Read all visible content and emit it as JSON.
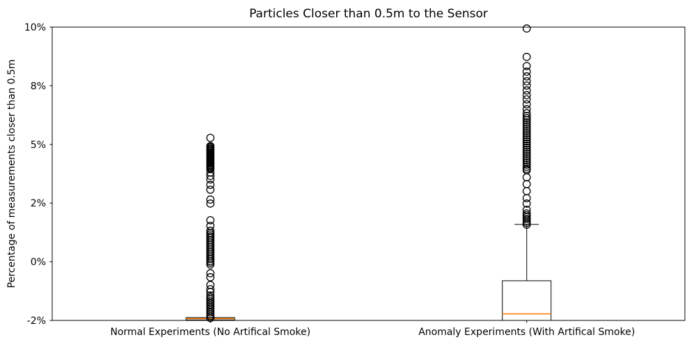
{
  "chart_data": {
    "type": "boxplot",
    "title": "Particles Closer than 0.5m to the Sensor",
    "ylabel": "Percentage of measurements closer than 0.5m",
    "xlabel": "",
    "ylim": [
      -2.5,
      10
    ],
    "y_unit": "percent",
    "grid": false,
    "legend": "none",
    "yticks": [
      {
        "value": -2.5,
        "label": "-2%"
      },
      {
        "value": 0,
        "label": "0%"
      },
      {
        "value": 2.5,
        "label": "2%"
      },
      {
        "value": 5,
        "label": "5%"
      },
      {
        "value": 7.5,
        "label": "8%"
      },
      {
        "value": 10,
        "label": "10%"
      }
    ],
    "categories": [
      "Normal Experiments (No Artifical Smoke)",
      "Anomaly Experiments (With Artifical Smoke)"
    ],
    "colors": {
      "box_edge": "#000000",
      "median": "#ff7f0e",
      "flier_edge": "#000000"
    },
    "series": [
      {
        "name": "Normal Experiments (No Artifical Smoke)",
        "whisker_low": -2.5,
        "q1": -2.48,
        "median": -2.42,
        "q3": -2.38,
        "whisker_high": -2.38,
        "outliers": [
          5.28,
          4.93,
          4.89,
          4.84,
          4.8,
          4.75,
          4.71,
          4.66,
          4.62,
          4.57,
          4.53,
          4.48,
          4.44,
          4.39,
          4.35,
          4.3,
          4.26,
          4.21,
          4.17,
          4.12,
          4.08,
          4.03,
          3.99,
          3.95,
          3.8,
          3.66,
          3.51,
          3.28,
          3.07,
          2.65,
          2.48,
          1.77,
          1.53,
          1.32,
          1.23,
          1.16,
          1.08,
          1.01,
          0.93,
          0.86,
          0.78,
          0.71,
          0.63,
          0.56,
          0.48,
          0.41,
          0.33,
          0.26,
          0.18,
          0.11,
          0.03,
          -0.04,
          -0.12,
          -0.49,
          -0.66,
          -0.99,
          -1.17,
          -1.29,
          -1.44,
          -1.52,
          -1.6,
          -1.68,
          -1.76,
          -1.84,
          -1.92,
          -2.0,
          -2.08,
          -2.16,
          -2.24,
          -2.32,
          -2.4
        ]
      },
      {
        "name": "Anomaly Experiments (With Artifical Smoke)",
        "whisker_low": -2.5,
        "q1": -2.5,
        "median": -2.22,
        "q3": -0.81,
        "whisker_high": 1.59,
        "outliers": [
          9.94,
          8.73,
          8.34,
          8.1,
          7.9,
          7.69,
          7.51,
          7.3,
          7.1,
          6.92,
          6.71,
          6.5,
          6.33,
          6.21,
          6.12,
          6.03,
          5.94,
          5.85,
          5.76,
          5.67,
          5.58,
          5.49,
          5.4,
          5.31,
          5.22,
          5.13,
          5.04,
          4.95,
          4.86,
          4.77,
          4.68,
          4.59,
          4.5,
          4.41,
          4.32,
          4.23,
          4.14,
          4.05,
          3.96,
          3.9,
          3.6,
          3.31,
          3.01,
          2.71,
          2.48,
          2.21,
          2.06,
          1.98,
          1.9,
          1.82,
          1.74,
          1.66,
          1.58
        ]
      }
    ]
  }
}
